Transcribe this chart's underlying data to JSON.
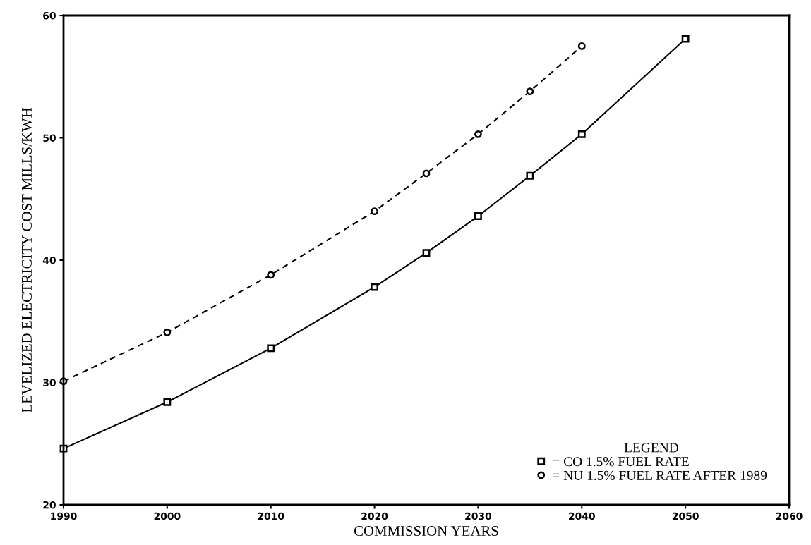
{
  "chart_data": {
    "type": "line",
    "xlabel": "COMMISSION YEARS",
    "ylabel": "LEVELIZED ELECTRICITY COST MILLS/KWH",
    "legend_title": "LEGEND",
    "xlim": [
      1990,
      2060
    ],
    "xticks": [
      1990,
      2000,
      2010,
      2020,
      2030,
      2040,
      2050,
      2060
    ],
    "ylim": [
      20,
      60
    ],
    "yticks": [
      20,
      30,
      40,
      50,
      60
    ],
    "grid": false,
    "legend": "bottom right",
    "series": [
      {
        "name": "= CO 1.5% FUEL RATE",
        "color": "#000000",
        "marker": "square",
        "line_style": "solid",
        "x": [
          1990,
          2000,
          2010,
          2020,
          2025,
          2030,
          2035,
          2040,
          2050
        ],
        "values": [
          24.6,
          28.4,
          32.8,
          37.8,
          40.6,
          43.6,
          46.9,
          50.3,
          58.1
        ]
      },
      {
        "name": "= NU 1.5% FUEL RATE AFTER 1989",
        "color": "#000000",
        "marker": "circle",
        "line_style": "dashed",
        "x": [
          1990,
          2000,
          2010,
          2020,
          2025,
          2030,
          2035,
          2040
        ],
        "values": [
          30.1,
          34.1,
          38.8,
          44.0,
          47.1,
          50.3,
          53.8,
          57.5
        ]
      }
    ]
  }
}
